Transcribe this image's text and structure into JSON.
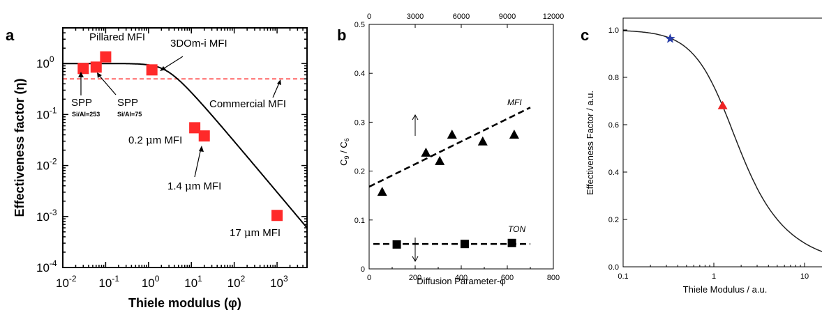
{
  "chart_data": [
    {
      "panel": "a",
      "type": "line",
      "xlabel": "Thiele modulus (φ)",
      "ylabel": "Effectiveness factor (η)",
      "xscale": "log",
      "yscale": "log",
      "xlim": [
        0.01,
        5000
      ],
      "ylim": [
        0.0001,
        5
      ],
      "x_ticks": [
        {
          "value": 0.01,
          "base": "10",
          "exp": "-2"
        },
        {
          "value": 0.1,
          "base": "10",
          "exp": "-1"
        },
        {
          "value": 1,
          "base": "10",
          "exp": "0"
        },
        {
          "value": 10,
          "base": "10",
          "exp": "1"
        },
        {
          "value": 100,
          "base": "10",
          "exp": "2"
        },
        {
          "value": 1000,
          "base": "10",
          "exp": "3"
        }
      ],
      "y_ticks": [
        {
          "value": 0.0001,
          "base": "10",
          "exp": "-4"
        },
        {
          "value": 0.001,
          "base": "10",
          "exp": "-3"
        },
        {
          "value": 0.01,
          "base": "10",
          "exp": "-2"
        },
        {
          "value": 0.1,
          "base": "10",
          "exp": "-1"
        },
        {
          "value": 1,
          "base": "10",
          "exp": "0"
        }
      ],
      "curve": "eta = 3/phi * (1/tanh(phi) - 1/phi)",
      "threshold": {
        "y": 0.5,
        "color": "#ff2a2a",
        "style": "dashed"
      },
      "points": [
        {
          "x": 0.03,
          "y": 0.8
        },
        {
          "x": 0.06,
          "y": 0.85
        },
        {
          "x": 0.1,
          "y": 1.35
        },
        {
          "x": 1.2,
          "y": 0.75
        },
        {
          "x": 12,
          "y": 0.055
        },
        {
          "x": 20,
          "y": 0.038
        },
        {
          "x": 1000,
          "y": 0.00105
        }
      ],
      "point_color": "#ff2a2a",
      "annotations": {
        "pillared": "Pillared MFI",
        "threedom": "3DOm-i MFI",
        "commercial": "Commercial MFI",
        "spp1": "SPP",
        "spp1_sub": "Si/Al=253",
        "spp2": "SPP",
        "spp2_sub": "Si/Al=75",
        "m02_pre": "0.2 ",
        "m02_mu": "μ",
        "m02_post": "m MFI",
        "m14_pre": "1.4 ",
        "m14_mu": "μ",
        "m14_post": "m MFI",
        "m17_pre": "17 ",
        "m17_mu": "μ",
        "m17_post": "m MFI"
      }
    },
    {
      "panel": "b",
      "type": "scatter",
      "xlabel": "Diffusion Parameter-φ",
      "ylabel_main": "C",
      "ylabel_sub1": "9",
      "ylabel_div": " / C",
      "ylabel_sub2": "6",
      "xlim": [
        0,
        800
      ],
      "ylim": [
        0,
        0.5
      ],
      "top_xlim": [
        0,
        12000
      ],
      "x_ticks": [
        "0",
        "200",
        "400",
        "600",
        "800"
      ],
      "y_ticks": [
        "0",
        "0.1",
        "0.2",
        "0.3",
        "0.4",
        "0.5"
      ],
      "top_ticks": [
        "0",
        "3000",
        "6000",
        "9000",
        "12000"
      ],
      "series": [
        {
          "name": "MFI",
          "axis": "top",
          "marker": "triangle",
          "x": [
            850,
            3700,
            4600,
            5400,
            7400,
            9450
          ],
          "y": [
            0.158,
            0.238,
            0.221,
            0.275,
            0.261,
            0.275
          ],
          "fit": [
            [
              0,
              0.168
            ],
            [
              10500,
              0.33
            ]
          ]
        },
        {
          "name": "TON",
          "axis": "bottom",
          "marker": "square",
          "x": [
            120,
            415,
            620
          ],
          "y": [
            0.05,
            0.051,
            0.053
          ],
          "fit": [
            [
              0,
              0.051
            ],
            [
              700,
              0.051
            ]
          ]
        }
      ]
    },
    {
      "panel": "c",
      "type": "line",
      "xlabel": "Thiele Modulus / a.u.",
      "ylabel": "Effectiveness Factor / a.u.",
      "xscale": "log",
      "xlim": [
        0.1,
        20
      ],
      "ylim": [
        0,
        1.05
      ],
      "x_ticks": [
        "0.1",
        "1",
        "10"
      ],
      "y_ticks": [
        "0.0",
        "0.2",
        "0.4",
        "0.6",
        "0.8",
        "1.0"
      ],
      "curve": "eta = tanh(phi)/phi",
      "markers": [
        {
          "shape": "star",
          "x": 0.33,
          "y": 0.963,
          "color": "#2b3fa8"
        },
        {
          "shape": "triangle",
          "x": 1.25,
          "y": 0.68,
          "color": "#ee2222"
        }
      ]
    }
  ]
}
